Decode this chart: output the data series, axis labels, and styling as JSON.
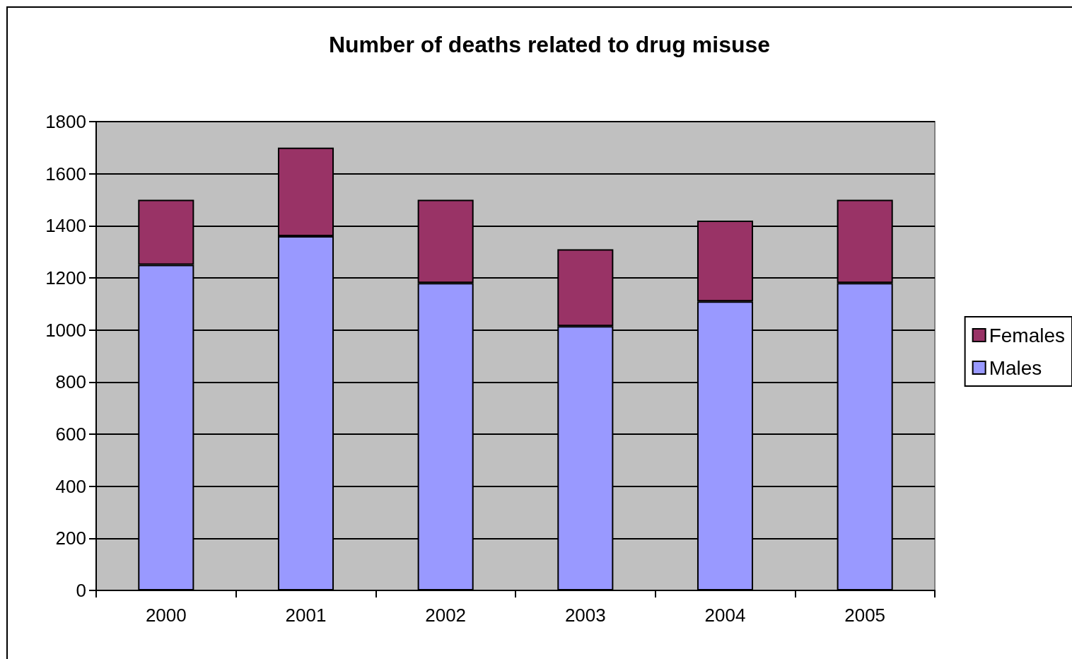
{
  "chart_data": {
    "type": "bar",
    "title": "Number of deaths related to drug misuse",
    "categories": [
      "2000",
      "2001",
      "2002",
      "2003",
      "2004",
      "2005"
    ],
    "stacked": true,
    "series": [
      {
        "name": "Males",
        "color": "#9999ff",
        "values": [
          1250,
          1360,
          1180,
          1015,
          1110,
          1180
        ]
      },
      {
        "name": "Females",
        "color": "#993366",
        "values": [
          250,
          340,
          320,
          295,
          310,
          320
        ]
      }
    ],
    "ylim": [
      0,
      1800
    ],
    "yticks": [
      0,
      200,
      400,
      600,
      800,
      1000,
      1200,
      1400,
      1600,
      1800
    ],
    "grid": "y",
    "legend": "right"
  }
}
